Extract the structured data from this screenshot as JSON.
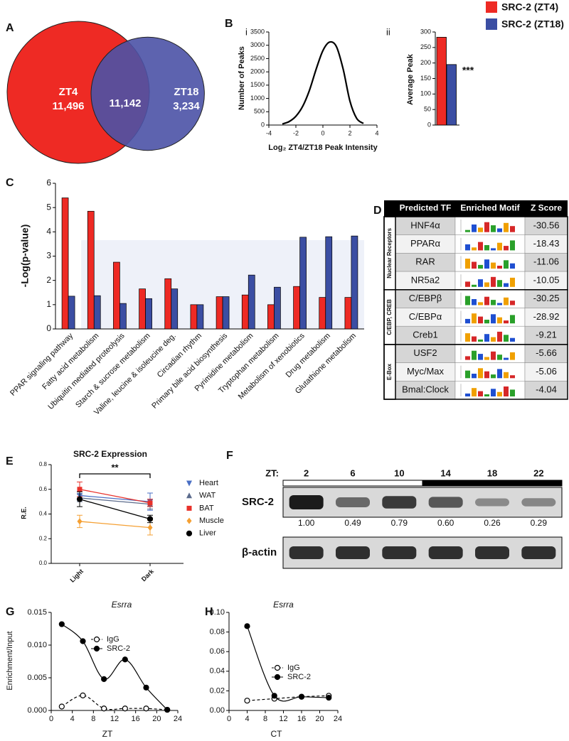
{
  "chart_data": [
    {
      "type": "venn",
      "label": "A",
      "sets": [
        {
          "name": "ZT4",
          "value": 11496,
          "value_label": "11,496",
          "color": "#ee2a24"
        },
        {
          "name": "ZT18",
          "value": 3234,
          "value_label": "3,234",
          "color": "#4b52a6"
        }
      ],
      "intersection": {
        "value": 11142,
        "value_label": "11,142"
      }
    },
    {
      "type": "line",
      "label": "B",
      "sublabel": "i",
      "x": [
        -3,
        -2.5,
        -2,
        -1.5,
        -1,
        -0.5,
        0,
        0.5,
        1,
        1.5,
        2,
        2.5,
        3
      ],
      "values": [
        40,
        130,
        330,
        700,
        1300,
        2100,
        2800,
        3120,
        2950,
        2100,
        900,
        250,
        60
      ],
      "color": "#000000",
      "xlim": [
        -4,
        4
      ],
      "xticks": [
        -4,
        -2,
        0,
        2,
        4
      ],
      "ylim": [
        0,
        3500
      ],
      "yticks": [
        0,
        500,
        1000,
        1500,
        2000,
        2500,
        3000,
        3500
      ],
      "xlabel": "Log₂ ZT4/ZT18 Peak Intensity",
      "ylabel": "Number of Peaks"
    },
    {
      "type": "bar",
      "sublabel": "ii",
      "categories": [
        null
      ],
      "series": [
        {
          "name": "SRC-2 (ZT4)",
          "color": "#ee2a24",
          "values": [
            283
          ]
        },
        {
          "name": "SRC-2 (ZT18)",
          "color": "#3b4ea3",
          "values": [
            195
          ]
        }
      ],
      "ylim": [
        0,
        300
      ],
      "yticks": [
        0,
        50,
        100,
        150,
        200,
        250,
        300
      ],
      "ylabel": "Average Peak",
      "annotation": "***",
      "legend": "top-right"
    },
    {
      "type": "bar",
      "label": "C",
      "categories": [
        "PPAR signaling pathway",
        "Fatty acid metabolism",
        "Ubiquitin mediated proteolysis",
        "Starch & sucrose metabolism",
        "Valine, leucine & isoleucine deg.",
        "Circadian rhythm",
        "Primary bile acid biosynthesis",
        "Pyrimidine metabolism",
        "Tryptophan metabolism",
        "Metabolism of xenobiotics",
        "Drug metabolism",
        "Glutathione metabolism"
      ],
      "series": [
        {
          "color": "#ee2a24",
          "values": [
            5.4,
            4.85,
            2.75,
            1.65,
            2.07,
            1.0,
            1.33,
            1.4,
            1.0,
            1.75,
            1.3,
            1.3
          ]
        },
        {
          "color": "#3b4ea3",
          "values": [
            1.35,
            1.37,
            1.05,
            1.25,
            1.65,
            1.0,
            1.33,
            2.22,
            1.72,
            3.78,
            3.8,
            3.83
          ]
        }
      ],
      "ylim": [
        0,
        6
      ],
      "yticks": [
        0,
        1,
        2,
        3,
        4,
        5,
        6
      ],
      "ylabel": "-Log(p-value)"
    },
    {
      "type": "line",
      "label": "E",
      "title": "SRC-2 Expression",
      "categories": [
        "Light",
        "Dark"
      ],
      "series": [
        {
          "name": "Heart",
          "color": "#4a6fc4",
          "marker": "triangle-down",
          "values": [
            0.55,
            0.5
          ],
          "errors": [
            0.03,
            0.07
          ]
        },
        {
          "name": "WAT",
          "color": "#5b6b8c",
          "marker": "triangle-up",
          "values": [
            0.53,
            0.48
          ],
          "errors": [
            0.03,
            0.04
          ]
        },
        {
          "name": "BAT",
          "color": "#e8312a",
          "marker": "square",
          "values": [
            0.6,
            0.49
          ],
          "errors": [
            0.06,
            0.03
          ]
        },
        {
          "name": "Muscle",
          "color": "#f5a033",
          "marker": "diamond",
          "values": [
            0.34,
            0.29
          ],
          "errors": [
            0.05,
            0.06
          ]
        },
        {
          "name": "Liver",
          "color": "#000000",
          "marker": "circle",
          "values": [
            0.52,
            0.36
          ],
          "errors": [
            0.06,
            0.03
          ]
        }
      ],
      "ylim": [
        0,
        0.8
      ],
      "yticks": [
        {
          "value": 0,
          "label": "0.0"
        },
        0.2,
        0.4,
        0.6,
        0.8
      ],
      "ylabel": "R.E.",
      "annotation": "**"
    },
    {
      "type": "line",
      "label": "G",
      "title": "Esrra",
      "x": [
        2,
        6,
        10,
        14,
        18,
        22
      ],
      "series": [
        {
          "name": "IgG",
          "color": "#000000",
          "dashed": true,
          "marker": "open-circle",
          "values": [
            0.0006,
            0.0023,
            0.0003,
            0.0003,
            0.0003,
            0.0001
          ]
        },
        {
          "name": "SRC-2",
          "color": "#000000",
          "dashed": false,
          "marker": "circle",
          "values": [
            0.0132,
            0.0106,
            0.0048,
            0.0078,
            0.0035,
            0.0001
          ]
        }
      ],
      "xlim": [
        0,
        24
      ],
      "xticks": [
        0,
        4,
        8,
        12,
        16,
        20,
        24
      ],
      "ylim": [
        0,
        0.015
      ],
      "yticks": [
        {
          "value": 0,
          "label": "0.000"
        },
        0.005,
        {
          "value": 0.01,
          "label": "0.010"
        },
        0.015
      ],
      "xlabel": "ZT",
      "ylabel": "Enrichment/Input"
    },
    {
      "type": "line",
      "label": "H",
      "title": "Esrra",
      "x": [
        4,
        10,
        16,
        22
      ],
      "series": [
        {
          "name": "IgG",
          "color": "#000000",
          "dashed": true,
          "marker": "open-circle",
          "values": [
            0.01,
            0.012,
            0.014,
            0.015
          ]
        },
        {
          "name": "SRC-2",
          "color": "#000000",
          "dashed": false,
          "marker": "circle",
          "values": [
            0.086,
            0.015,
            0.014,
            0.013
          ]
        }
      ],
      "xlim": [
        0,
        24
      ],
      "xticks": [
        0,
        4,
        8,
        12,
        16,
        20,
        24
      ],
      "ylim": [
        0,
        0.1
      ],
      "yticks": [
        {
          "value": 0,
          "label": "0.00"
        },
        0.02,
        0.04,
        0.06,
        0.08,
        {
          "value": 0.1,
          "label": "0.10"
        }
      ],
      "xlabel": "CT"
    }
  ],
  "table": {
    "label": "D",
    "header": [
      "Predicted TF",
      "Enriched Motif",
      "Z Score"
    ],
    "groups": [
      {
        "name": "Nuclear Receptors",
        "rows": [
          {
            "tf": "HNF4α",
            "z": -30.56
          },
          {
            "tf": "PPARα",
            "z": -18.43
          },
          {
            "tf": "RAR",
            "z": -11.06
          },
          {
            "tf": "NR5a2",
            "z": -10.05
          }
        ]
      },
      {
        "name": "C/EBP, CREB",
        "rows": [
          {
            "tf": "C/EBPβ",
            "z": -30.25
          },
          {
            "tf": "C/EBPα",
            "z": -28.92
          },
          {
            "tf": "Creb1",
            "z": -9.21
          }
        ]
      },
      {
        "name": "E-Box",
        "rows": [
          {
            "tf": "USF2",
            "z": -5.66
          },
          {
            "tf": "Myc/Max",
            "z": -5.06
          },
          {
            "tf": "Bmal:Clock",
            "z": -4.04
          }
        ]
      }
    ]
  },
  "blot": {
    "label": "F",
    "axis_label": "ZT:",
    "timepoints": [
      2,
      6,
      10,
      14,
      18,
      22
    ],
    "rows": [
      {
        "name": "SRC-2",
        "values": [
          1,
          0.49,
          0.79,
          0.6,
          0.26,
          0.29
        ],
        "value_labels": [
          "1.00",
          "0.49",
          "0.79",
          "0.60",
          "0.26",
          "0.29"
        ]
      },
      {
        "name": "β-actin"
      }
    ]
  }
}
